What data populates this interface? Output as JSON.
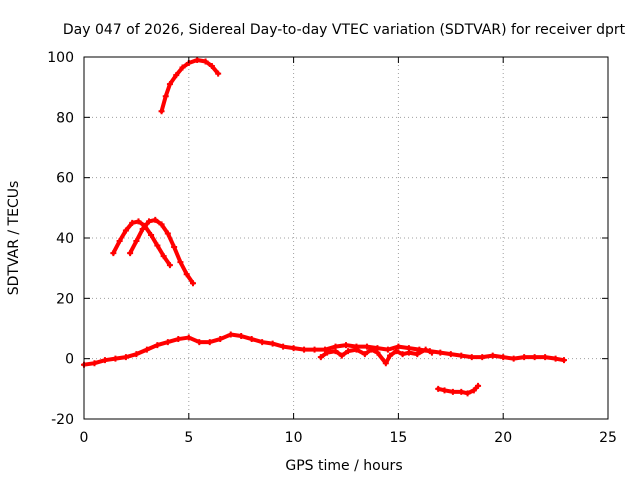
{
  "chart_data": {
    "type": "scatter",
    "title": "Day 047 of 2026, Sidereal Day-to-day VTEC variation (SDTVAR) for receiver dprt",
    "xlabel": "GPS time / hours",
    "ylabel": "SDTVAR / TECUs",
    "xlim": [
      0,
      25
    ],
    "ylim": [
      -20,
      100
    ],
    "xticks": [
      0,
      5,
      10,
      15,
      20,
      25
    ],
    "yticks": [
      -20,
      0,
      20,
      40,
      60,
      80,
      100
    ],
    "grid": true,
    "series_color": "#ff0000",
    "series": [
      {
        "name": "arc-high",
        "points": [
          [
            3.7,
            82
          ],
          [
            3.9,
            87
          ],
          [
            4.1,
            91
          ],
          [
            4.4,
            94
          ],
          [
            4.7,
            96.5
          ],
          [
            5.0,
            98
          ],
          [
            5.4,
            99
          ],
          [
            5.8,
            98.5
          ],
          [
            6.1,
            97
          ],
          [
            6.4,
            94.5
          ]
        ]
      },
      {
        "name": "arc-mid-a",
        "points": [
          [
            1.4,
            35
          ],
          [
            1.7,
            39
          ],
          [
            2.0,
            42.5
          ],
          [
            2.3,
            45
          ],
          [
            2.6,
            45.5
          ],
          [
            2.9,
            44
          ],
          [
            3.2,
            41
          ],
          [
            3.5,
            37.5
          ],
          [
            3.8,
            34
          ],
          [
            4.1,
            31
          ]
        ]
      },
      {
        "name": "arc-mid-b",
        "points": [
          [
            2.2,
            35
          ],
          [
            2.5,
            39
          ],
          [
            2.8,
            43
          ],
          [
            3.1,
            45.5
          ],
          [
            3.4,
            46
          ],
          [
            3.7,
            44.5
          ],
          [
            4.0,
            41.5
          ],
          [
            4.3,
            37
          ],
          [
            4.6,
            32
          ],
          [
            4.9,
            28
          ],
          [
            5.2,
            25
          ]
        ]
      },
      {
        "name": "main-trend",
        "points": [
          [
            0,
            -2
          ],
          [
            0.5,
            -1.5
          ],
          [
            1.0,
            -0.5
          ],
          [
            1.5,
            0
          ],
          [
            2.0,
            0.5
          ],
          [
            2.5,
            1.5
          ],
          [
            3.0,
            3
          ],
          [
            3.5,
            4.5
          ],
          [
            4.0,
            5.5
          ],
          [
            4.5,
            6.5
          ],
          [
            5.0,
            7
          ],
          [
            5.5,
            5.5
          ],
          [
            6.0,
            5.5
          ],
          [
            6.5,
            6.5
          ],
          [
            7.0,
            8
          ],
          [
            7.5,
            7.5
          ],
          [
            8.0,
            6.5
          ],
          [
            8.5,
            5.5
          ],
          [
            9.0,
            5
          ],
          [
            9.5,
            4
          ],
          [
            10.0,
            3.5
          ],
          [
            10.5,
            3
          ],
          [
            11.0,
            3
          ],
          [
            11.5,
            3
          ],
          [
            12.0,
            4
          ],
          [
            12.5,
            4.5
          ],
          [
            13.0,
            4
          ],
          [
            13.5,
            4
          ],
          [
            14.0,
            3.5
          ],
          [
            14.5,
            3
          ],
          [
            15.0,
            4
          ],
          [
            15.5,
            3.5
          ],
          [
            16.0,
            3
          ],
          [
            16.5,
            2.5
          ],
          [
            17.0,
            2
          ],
          [
            17.5,
            1.5
          ],
          [
            18.0,
            1
          ],
          [
            18.5,
            0.5
          ],
          [
            19.0,
            0.5
          ],
          [
            19.5,
            1
          ],
          [
            20.0,
            0.5
          ],
          [
            20.5,
            0
          ],
          [
            21.0,
            0.5
          ],
          [
            21.5,
            0.5
          ],
          [
            22.0,
            0.5
          ],
          [
            22.5,
            0
          ],
          [
            22.9,
            -0.5
          ]
        ]
      },
      {
        "name": "main-detail",
        "points": [
          [
            11.3,
            0.5
          ],
          [
            11.6,
            2
          ],
          [
            12.0,
            2.5
          ],
          [
            12.3,
            1
          ],
          [
            12.6,
            2.5
          ],
          [
            13.0,
            3
          ],
          [
            13.4,
            1.5
          ],
          [
            13.7,
            3
          ],
          [
            14.0,
            2
          ],
          [
            14.4,
            -1.5
          ],
          [
            14.6,
            1
          ],
          [
            14.9,
            2.5
          ],
          [
            15.2,
            1.5
          ],
          [
            15.5,
            2
          ],
          [
            15.9,
            1.5
          ],
          [
            16.3,
            3
          ],
          [
            16.6,
            2
          ]
        ]
      },
      {
        "name": "low-dip",
        "points": [
          [
            16.9,
            -10
          ],
          [
            17.2,
            -10.5
          ],
          [
            17.6,
            -11
          ],
          [
            18.0,
            -11
          ],
          [
            18.3,
            -11.5
          ],
          [
            18.6,
            -10.5
          ],
          [
            18.8,
            -9
          ]
        ]
      }
    ]
  }
}
